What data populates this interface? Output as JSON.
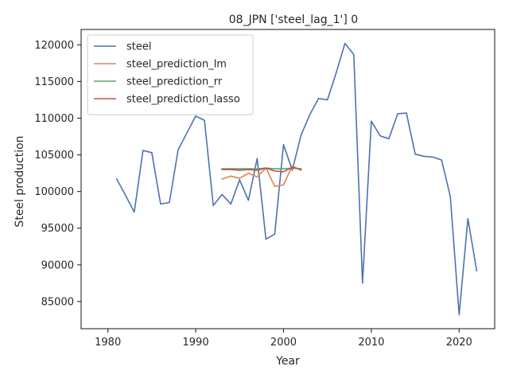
{
  "chart_data": {
    "type": "line",
    "title": "08_JPN ['steel_lag_1'] 0",
    "xlabel": "Year",
    "ylabel": "Steel production",
    "xlim": [
      1976.95,
      2024.05
    ],
    "ylim": [
      81300,
      122100
    ],
    "xticks": [
      1980,
      1990,
      2000,
      2010,
      2020
    ],
    "yticks": [
      85000,
      90000,
      95000,
      100000,
      105000,
      110000,
      115000,
      120000
    ],
    "grid": false,
    "legend_position": "top-left",
    "series": [
      {
        "name": "steel",
        "color": "#4c72b0",
        "x": [
          1981,
          1982,
          1983,
          1984,
          1985,
          1986,
          1987,
          1988,
          1989,
          1990,
          1991,
          1992,
          1993,
          1994,
          1995,
          1996,
          1997,
          1998,
          1999,
          2000,
          2001,
          2002,
          2003,
          2004,
          2005,
          2006,
          2007,
          2008,
          2009,
          2010,
          2011,
          2012,
          2013,
          2014,
          2015,
          2016,
          2017,
          2018,
          2019,
          2020,
          2021,
          2022
        ],
        "values": [
          101700,
          99500,
          97200,
          105600,
          105300,
          98300,
          98500,
          105700,
          108000,
          110300,
          109700,
          98100,
          99600,
          98300,
          101600,
          98800,
          104500,
          93500,
          94200,
          106400,
          102900,
          107700,
          110500,
          112700,
          112500,
          116200,
          120200,
          118700,
          87500,
          109600,
          107600,
          107200,
          110600,
          110700,
          105100,
          104800,
          104700,
          104300,
          99300,
          83200,
          96300,
          89200
        ]
      },
      {
        "name": "steel_prediction_lm",
        "color": "#dd8452",
        "x": [
          1993,
          1994,
          1995,
          1996,
          1997,
          1998,
          1999,
          2000,
          2001,
          2002
        ],
        "values": [
          101700,
          102100,
          101800,
          102500,
          102000,
          103200,
          100700,
          100900,
          103500,
          102900
        ]
      },
      {
        "name": "steel_prediction_rr",
        "color": "#55a868",
        "x": [
          1993,
          1994,
          1995,
          1996,
          1997,
          1998,
          1999,
          2000,
          2001,
          2002
        ],
        "values": [
          103100,
          103100,
          103100,
          103100,
          103100,
          103200,
          103100,
          103100,
          103200,
          103100
        ]
      },
      {
        "name": "steel_prediction_lasso",
        "color": "#c44e52",
        "x": [
          1993,
          1994,
          1995,
          1996,
          1997,
          1998,
          1999,
          2000,
          2001,
          2002
        ],
        "values": [
          103000,
          103000,
          102900,
          103000,
          102900,
          103200,
          102800,
          102700,
          103300,
          103000
        ]
      }
    ]
  }
}
